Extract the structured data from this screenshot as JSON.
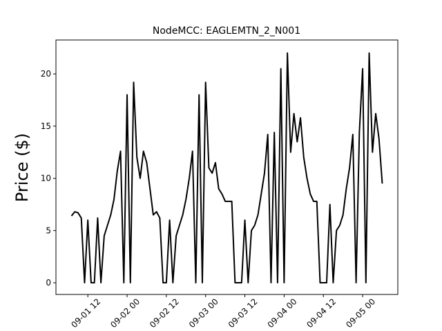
{
  "chart_data": {
    "type": "line",
    "title": "NodeMCC: EAGLEMTN_2_N001",
    "y_label": "Price ($)",
    "color": "#000000",
    "x": [
      "09-01 07",
      "09-01 08",
      "09-01 09",
      "09-01 10",
      "09-01 11",
      "09-01 12",
      "09-01 13",
      "09-01 14",
      "09-01 15",
      "09-01 16",
      "09-01 17",
      "09-01 18",
      "09-01 19",
      "09-01 20",
      "09-01 21",
      "09-01 22",
      "09-01 23",
      "09-02 00",
      "09-02 01",
      "09-02 02",
      "09-02 03",
      "09-02 04",
      "09-02 05",
      "09-02 06",
      "09-02 07",
      "09-02 08",
      "09-02 09",
      "09-02 10",
      "09-02 11",
      "09-02 12",
      "09-02 13",
      "09-02 14",
      "09-02 15",
      "09-02 16",
      "09-02 17",
      "09-02 18",
      "09-02 19",
      "09-02 20",
      "09-02 21",
      "09-02 22",
      "09-02 23",
      "09-03 00",
      "09-03 01",
      "09-03 02",
      "09-03 03",
      "09-03 04",
      "09-03 05",
      "09-03 06",
      "09-03 07",
      "09-03 08",
      "09-03 09",
      "09-03 10",
      "09-03 11",
      "09-03 12",
      "09-03 13",
      "09-03 14",
      "09-03 15",
      "09-03 16",
      "09-03 17",
      "09-03 18",
      "09-03 19",
      "09-03 20",
      "09-03 21",
      "09-03 22",
      "09-03 23",
      "09-04 00",
      "09-04 01",
      "09-04 02",
      "09-04 03",
      "09-04 04",
      "09-04 05",
      "09-04 06",
      "09-04 07",
      "09-04 08",
      "09-04 09",
      "09-04 10",
      "09-04 11",
      "09-04 12",
      "09-04 13",
      "09-04 14",
      "09-04 15",
      "09-04 16",
      "09-04 17",
      "09-04 18",
      "09-04 19",
      "09-04 20",
      "09-04 21",
      "09-04 22",
      "09-04 23",
      "09-05 00",
      "09-05 01",
      "09-05 02",
      "09-05 03",
      "09-05 04",
      "09-05 05",
      "09-05 06"
    ],
    "values": [
      6.4,
      6.8,
      6.7,
      6.2,
      0,
      6.0,
      0,
      0,
      6.2,
      0,
      4.5,
      5.5,
      6.5,
      8.0,
      10.7,
      12.6,
      0,
      18.0,
      0,
      19.2,
      12.0,
      10.0,
      12.6,
      11.5,
      9.0,
      6.5,
      6.8,
      6.2,
      0,
      0,
      6.0,
      0,
      4.5,
      5.5,
      6.5,
      8.0,
      10.0,
      12.6,
      0,
      18.0,
      0,
      19.2,
      11.0,
      10.5,
      11.5,
      9.0,
      8.5,
      7.8,
      7.8,
      7.8,
      0,
      0,
      0,
      6.0,
      0,
      5.0,
      5.5,
      6.5,
      8.5,
      10.5,
      14.2,
      0,
      14.4,
      0,
      20.5,
      0,
      22.0,
      12.5,
      16.2,
      13.5,
      15.8,
      12.0,
      10.0,
      8.5,
      7.8,
      7.8,
      0,
      0,
      0,
      7.5,
      0,
      5.0,
      5.5,
      6.5,
      9.0,
      11.0,
      14.2,
      0,
      14.4,
      20.5,
      0,
      22.0,
      12.5,
      16.2,
      13.8,
      9.5
    ],
    "xticks": [
      "09-01 12",
      "09-02 00",
      "09-02 12",
      "09-03 00",
      "09-03 12",
      "09-04 00",
      "09-04 12",
      "09-05 00"
    ],
    "ylim": [
      -1.12,
      23.25
    ],
    "yticks": [
      0,
      5,
      10,
      15,
      20
    ]
  }
}
